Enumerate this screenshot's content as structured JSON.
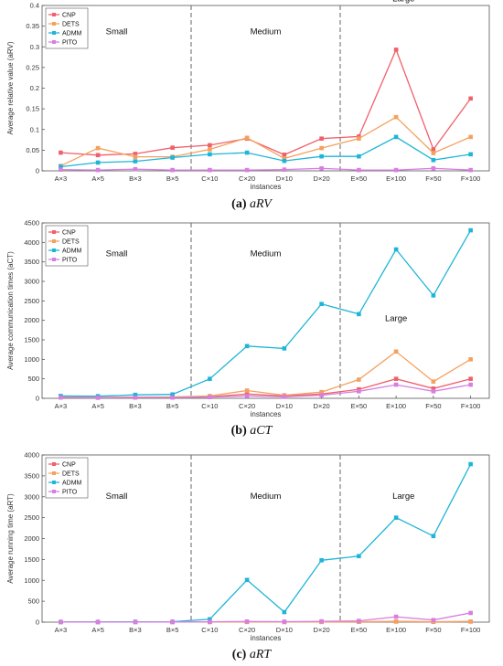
{
  "colors": {
    "CNP": "#f0606b",
    "DETS": "#f4a15d",
    "ADMM": "#1fb5d8",
    "PITO": "#d77ee0"
  },
  "chart_data": [
    {
      "type": "line",
      "caption_letter": "(a)",
      "caption_name": "aRV",
      "xlabel": "instances",
      "ylabel": "Average relative value (aRV)",
      "x": [
        "A×3",
        "A×5",
        "B×3",
        "B×5",
        "C×10",
        "C×20",
        "D×10",
        "D×20",
        "E×50",
        "E×100",
        "F×50",
        "F×100"
      ],
      "ylim": [
        0,
        0.4
      ],
      "yticks": [
        0,
        0.05,
        0.1,
        0.15,
        0.2,
        0.25,
        0.3,
        0.35,
        0.4
      ],
      "ytick_labels": [
        "0",
        "0.05",
        "0.1",
        "0.15",
        "0.2",
        "0.25",
        "0.3",
        "0.35",
        "0.4"
      ],
      "legend_position": "top-left",
      "dividers": [
        3.5,
        7.5
      ],
      "regions": [
        {
          "label": "Small",
          "x": 1.5,
          "y": 0.33
        },
        {
          "label": "Medium",
          "x": 5.5,
          "y": 0.33
        },
        {
          "label": "Large",
          "x": 9.2,
          "y": 0.41
        }
      ],
      "series": [
        {
          "name": "CNP",
          "values": [
            0.044,
            0.038,
            0.041,
            0.056,
            0.062,
            0.078,
            0.039,
            0.078,
            0.083,
            0.293,
            0.052,
            0.175
          ]
        },
        {
          "name": "DETS",
          "values": [
            0.012,
            0.055,
            0.034,
            0.034,
            0.052,
            0.08,
            0.03,
            0.055,
            0.078,
            0.13,
            0.043,
            0.082
          ]
        },
        {
          "name": "ADMM",
          "values": [
            0.01,
            0.02,
            0.023,
            0.032,
            0.04,
            0.044,
            0.024,
            0.035,
            0.035,
            0.082,
            0.026,
            0.04
          ]
        },
        {
          "name": "PITO",
          "values": [
            0.003,
            0.002,
            0.004,
            0.002,
            0.002,
            0.002,
            0.003,
            0.006,
            0.002,
            0.002,
            0.006,
            0.002
          ]
        }
      ]
    },
    {
      "type": "line",
      "caption_letter": "(b)",
      "caption_name": "aCT",
      "xlabel": "instances",
      "ylabel": "Average communication times (aCT)",
      "x": [
        "A×3",
        "A×5",
        "B×3",
        "B×5",
        "C×10",
        "C×20",
        "D×10",
        "D×20",
        "E×50",
        "E×100",
        "F×50",
        "F×100"
      ],
      "ylim": [
        0,
        4500
      ],
      "yticks": [
        0,
        500,
        1000,
        1500,
        2000,
        2500,
        3000,
        3500,
        4000,
        4500
      ],
      "ytick_labels": [
        "0",
        "500",
        "1000",
        "1500",
        "2000",
        "2500",
        "3000",
        "3500",
        "4000",
        "4500"
      ],
      "legend_position": "top-left",
      "dividers": [
        3.5,
        7.5
      ],
      "regions": [
        {
          "label": "Small",
          "x": 1.5,
          "y": 3650
        },
        {
          "label": "Medium",
          "x": 5.5,
          "y": 3650
        },
        {
          "label": "Large",
          "x": 9.0,
          "y": 1980
        }
      ],
      "series": [
        {
          "name": "CNP",
          "values": [
            30,
            20,
            25,
            30,
            40,
            110,
            60,
            110,
            230,
            500,
            250,
            500
          ]
        },
        {
          "name": "DETS",
          "values": [
            40,
            25,
            30,
            35,
            60,
            200,
            80,
            160,
            480,
            1200,
            430,
            1000
          ]
        },
        {
          "name": "ADMM",
          "values": [
            60,
            55,
            90,
            100,
            500,
            1340,
            1280,
            2420,
            2160,
            3820,
            2640,
            4310
          ]
        },
        {
          "name": "PITO",
          "values": [
            20,
            15,
            20,
            20,
            30,
            60,
            40,
            80,
            180,
            350,
            180,
            350
          ]
        }
      ]
    },
    {
      "type": "line",
      "caption_letter": "(c)",
      "caption_name": "aRT",
      "xlabel": "instances",
      "ylabel": "Average running time (aRT)",
      "x": [
        "A×3",
        "A×5",
        "B×3",
        "B×5",
        "C×10",
        "C×20",
        "D×10",
        "D×20",
        "E×50",
        "E×100",
        "F×50",
        "F×100"
      ],
      "ylim": [
        0,
        4000
      ],
      "yticks": [
        0,
        500,
        1000,
        1500,
        2000,
        2500,
        3000,
        3500,
        4000
      ],
      "ytick_labels": [
        "0",
        "500",
        "1000",
        "1500",
        "2000",
        "2500",
        "3000",
        "3500",
        "4000"
      ],
      "legend_position": "top-left",
      "dividers": [
        3.5,
        7.5
      ],
      "regions": [
        {
          "label": "Small",
          "x": 1.5,
          "y": 2950
        },
        {
          "label": "Medium",
          "x": 5.5,
          "y": 2950
        },
        {
          "label": "Large",
          "x": 9.2,
          "y": 2950
        }
      ],
      "series": [
        {
          "name": "CNP",
          "values": [
            2,
            2,
            2,
            2,
            3,
            5,
            3,
            5,
            8,
            15,
            8,
            15
          ]
        },
        {
          "name": "DETS",
          "values": [
            2,
            2,
            2,
            2,
            3,
            5,
            3,
            5,
            8,
            15,
            8,
            15
          ]
        },
        {
          "name": "ADMM",
          "values": [
            5,
            5,
            8,
            10,
            70,
            1010,
            240,
            1480,
            1580,
            2500,
            2060,
            3780
          ]
        },
        {
          "name": "PITO",
          "values": [
            3,
            3,
            3,
            5,
            8,
            15,
            10,
            20,
            30,
            130,
            50,
            220
          ]
        }
      ]
    }
  ]
}
